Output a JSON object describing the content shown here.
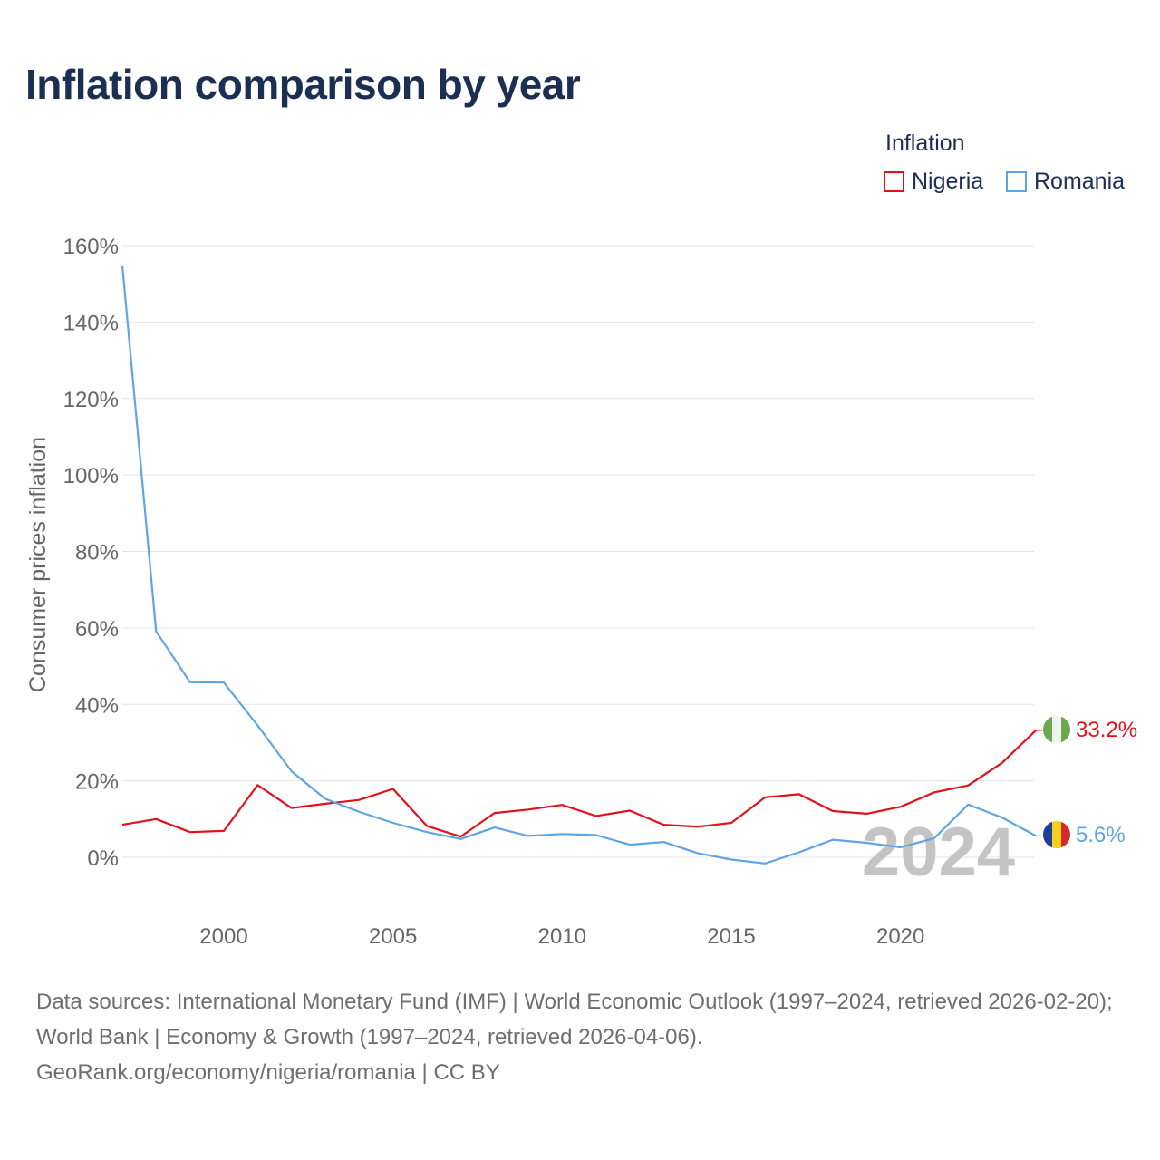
{
  "title": "Inflation comparison by year",
  "legend": {
    "title": "Inflation",
    "items": [
      {
        "label": "Nigeria",
        "color": "#e3111a"
      },
      {
        "label": "Romania",
        "color": "#5ea5e6"
      }
    ]
  },
  "year_watermark": "2024",
  "footer": {
    "sources": "Data sources: International Monetary Fund (IMF) | World Economic Outlook (1997–2024, retrieved 2026-02-20); World Bank | Economy & Growth (1997–2024, retrieved 2026-04-06).",
    "attribution": "GeoRank.org/economy/nigeria/romania | CC BY"
  },
  "chart_data": {
    "type": "line",
    "title": "Inflation comparison by year",
    "xlabel": "",
    "ylabel": "Consumer prices inflation",
    "xlim": [
      1997,
      2024
    ],
    "ylim": [
      -10,
      160
    ],
    "yticks": [
      0,
      20,
      40,
      60,
      80,
      100,
      120,
      140,
      160
    ],
    "ytick_labels": [
      "0%",
      "20%",
      "40%",
      "60%",
      "80%",
      "100%",
      "120%",
      "140%",
      "160%"
    ],
    "xticks": [
      2000,
      2005,
      2010,
      2015,
      2020
    ],
    "xtick_labels": [
      "2000",
      "2005",
      "2010",
      "2015",
      "2020"
    ],
    "grid": true,
    "legend_position": "top-right",
    "x": [
      1997,
      1998,
      1999,
      2000,
      2001,
      2002,
      2003,
      2004,
      2005,
      2006,
      2007,
      2008,
      2009,
      2010,
      2011,
      2012,
      2013,
      2014,
      2015,
      2016,
      2017,
      2018,
      2019,
      2020,
      2021,
      2022,
      2023,
      2024
    ],
    "series": [
      {
        "name": "Nigeria",
        "color": "#e3111a",
        "end_label": "33.2%",
        "flag": "nigeria",
        "values": [
          8.5,
          10.0,
          6.6,
          6.9,
          18.9,
          12.9,
          14.0,
          15.0,
          17.9,
          8.2,
          5.4,
          11.6,
          12.5,
          13.7,
          10.8,
          12.2,
          8.5,
          8.0,
          9.0,
          15.7,
          16.5,
          12.1,
          11.4,
          13.2,
          17.0,
          18.8,
          24.7,
          33.2
        ]
      },
      {
        "name": "Romania",
        "color": "#5ea5e6",
        "end_label": "5.6%",
        "flag": "romania",
        "values": [
          154.8,
          59.1,
          45.8,
          45.7,
          34.5,
          22.5,
          15.3,
          11.9,
          9.0,
          6.6,
          4.8,
          7.8,
          5.6,
          6.1,
          5.8,
          3.3,
          4.0,
          1.1,
          -0.6,
          -1.6,
          1.3,
          4.6,
          3.8,
          2.6,
          5.0,
          13.8,
          10.4,
          5.6
        ]
      }
    ]
  }
}
